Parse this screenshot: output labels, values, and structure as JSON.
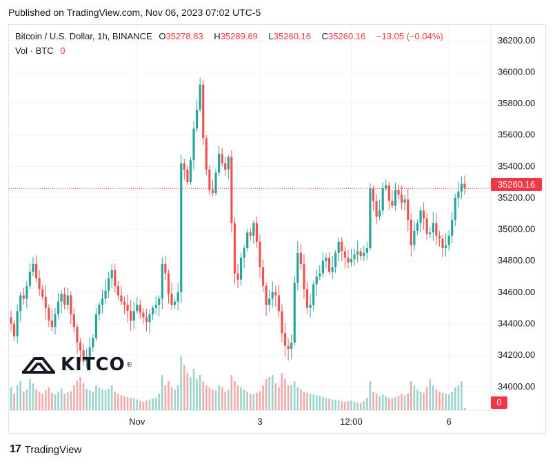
{
  "header": {
    "published": "Published on TradingView.com, Nov 06, 2023 07:02 UTC-5"
  },
  "legend": {
    "symbol": "Bitcoin / U.S. Dollar, 1h, BINANCE",
    "o_label": "O",
    "o_value": "35278.83",
    "h_label": "H",
    "h_value": "35289.69",
    "l_label": "L",
    "l_value": "35260.16",
    "c_label": "C",
    "c_value": "35260.16",
    "change": "−13.05 (−0.04%)",
    "vol_label": "Vol · BTC",
    "vol_value": "0"
  },
  "price_tag": "35260.16",
  "vol_tag": "0",
  "footer": {
    "brand": "TradingView",
    "mark": "17"
  },
  "watermark": {
    "text": "KITCO",
    "reg": "®"
  },
  "colors": {
    "up": "#26a69a",
    "down": "#ef5350",
    "vol_up": "#9ad4cd",
    "vol_down": "#f1aaa9",
    "grid": "#f0f3fa",
    "price_line": "#f23645"
  },
  "chart_data": {
    "type": "candlestick",
    "title": "Bitcoin / U.S. Dollar, 1h, BINANCE",
    "xlabel": "",
    "ylabel": "",
    "ylim": [
      33850,
      36300
    ],
    "y_ticks": [
      34000,
      34200,
      34400,
      34600,
      34800,
      35000,
      35200,
      35400,
      35600,
      35800,
      36000,
      36200
    ],
    "y_tick_labels": [
      "34000.00",
      "34200.00",
      "34400.00",
      "34600.00",
      "34800.00",
      "35000.00",
      "35200.00",
      "35400.00",
      "35600.00",
      "35800.00",
      "36000.00",
      "36200.00"
    ],
    "x_ticks": [
      {
        "label": "Nov",
        "index": 40
      },
      {
        "label": "3",
        "index": 79
      },
      {
        "label": "12:00",
        "index": 108
      },
      {
        "label": "6",
        "index": 139
      }
    ],
    "last_price": 35260.16,
    "grid": true,
    "closes": [
      34400,
      34320,
      34480,
      34580,
      34560,
      34640,
      34730,
      34780,
      34690,
      34620,
      34570,
      34500,
      34420,
      34380,
      34460,
      34540,
      34590,
      34520,
      34580,
      34460,
      34380,
      34280,
      34230,
      34160,
      34190,
      34250,
      34310,
      34460,
      34520,
      34560,
      34610,
      34690,
      34740,
      34640,
      34580,
      34540,
      34520,
      34480,
      34420,
      34480,
      34520,
      34470,
      34440,
      34410,
      34460,
      34500,
      34520,
      34560,
      34780,
      34720,
      34590,
      34520,
      34540,
      34600,
      35420,
      35380,
      35300,
      35440,
      35640,
      35760,
      35920,
      35580,
      35380,
      35250,
      35230,
      35360,
      35480,
      35420,
      35380,
      35460,
      35040,
      34720,
      34680,
      34820,
      34880,
      34980,
      34960,
      35040,
      34920,
      34760,
      34640,
      34520,
      34560,
      34600,
      34580,
      34480,
      34340,
      34260,
      34240,
      34280,
      34660,
      34850,
      34780,
      34620,
      34500,
      34520,
      34650,
      34700,
      34720,
      34800,
      34820,
      34730,
      34760,
      34850,
      34920,
      34860,
      34820,
      34790,
      34810,
      34840,
      34860,
      34830,
      34850,
      34880,
      35260,
      35180,
      35080,
      35120,
      35260,
      35280,
      35180,
      35150,
      35250,
      35220,
      35170,
      35190,
      35060,
      34900,
      34990,
      35040,
      35120,
      35070,
      34970,
      34980,
      35040,
      34960,
      34940,
      34880,
      34900,
      34960,
      35060,
      35200,
      35240,
      35290,
      35260
    ],
    "volumes": [
      55,
      40,
      60,
      70,
      45,
      50,
      75,
      65,
      50,
      45,
      40,
      48,
      55,
      42,
      38,
      45,
      52,
      40,
      44,
      46,
      60,
      72,
      80,
      66,
      52,
      48,
      45,
      60,
      55,
      50,
      48,
      52,
      60,
      45,
      40,
      36,
      34,
      32,
      30,
      28,
      26,
      22,
      20,
      24,
      26,
      28,
      30,
      40,
      85,
      60,
      70,
      55,
      50,
      60,
      130,
      110,
      90,
      80,
      100,
      75,
      85,
      70,
      60,
      55,
      50,
      48,
      60,
      55,
      45,
      50,
      85,
      70,
      60,
      55,
      50,
      45,
      40,
      38,
      42,
      46,
      60,
      75,
      80,
      85,
      65,
      55,
      90,
      75,
      60,
      60,
      70,
      55,
      50,
      45,
      42,
      40,
      38,
      36,
      35,
      32,
      30,
      28,
      26,
      25,
      24,
      22,
      20,
      22,
      24,
      20,
      18,
      18,
      22,
      30,
      70,
      45,
      40,
      35,
      38,
      34,
      30,
      28,
      32,
      35,
      40,
      36,
      40,
      70,
      60,
      50,
      45,
      42,
      55,
      75,
      60,
      50,
      45,
      42,
      40,
      38,
      45,
      55,
      60,
      70,
      5
    ]
  }
}
